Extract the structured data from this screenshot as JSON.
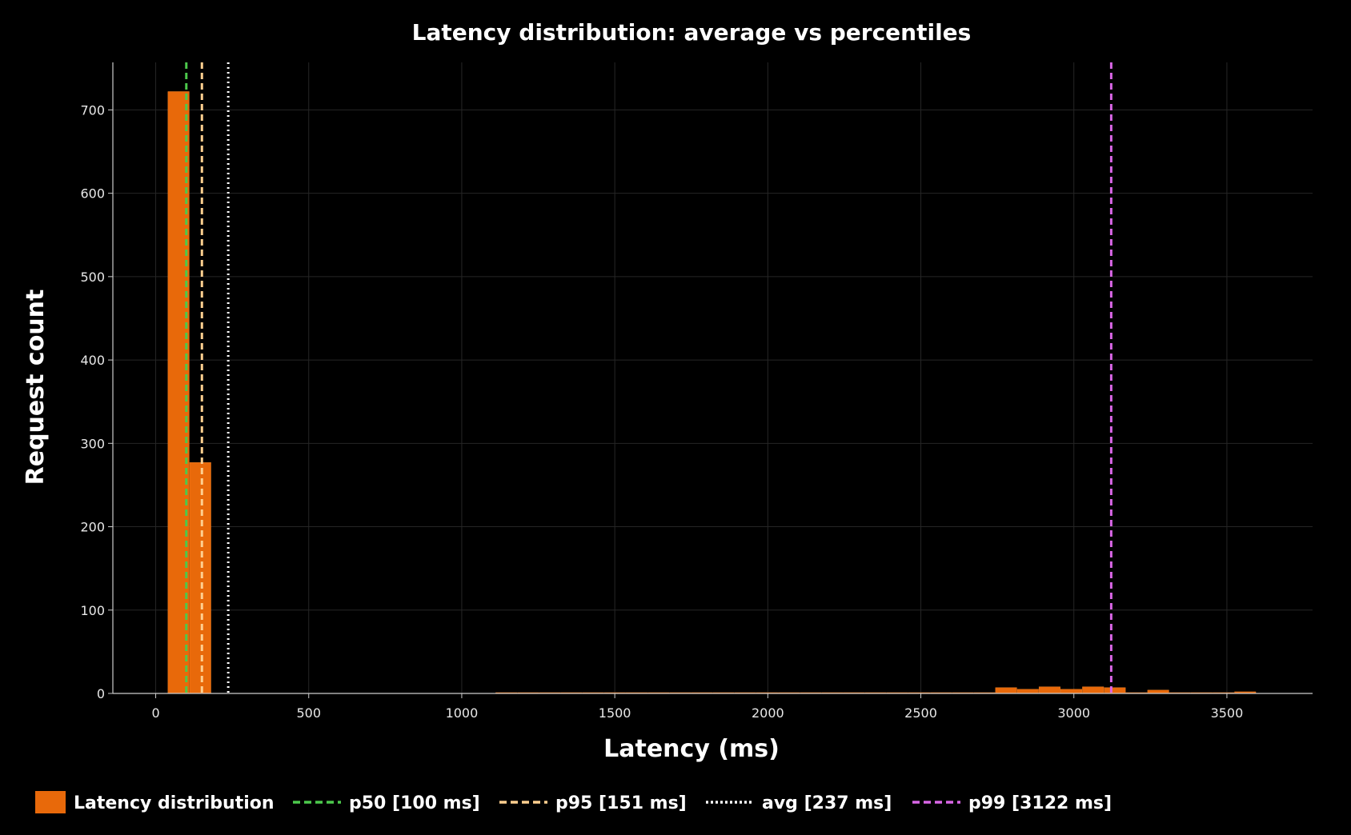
{
  "chart_data": {
    "type": "bar",
    "title": "Latency distribution: average vs percentiles",
    "xlabel": "Latency (ms)",
    "ylabel": "Request count",
    "xlim": [
      -140,
      3780
    ],
    "ylim": [
      0,
      757
    ],
    "x_ticks": [
      0,
      500,
      1000,
      1500,
      2000,
      2500,
      3000,
      3500
    ],
    "y_ticks": [
      0,
      100,
      200,
      300,
      400,
      500,
      600,
      700
    ],
    "grid": true,
    "legend_position": "bottom",
    "colors": {
      "background": "#000000",
      "bars": "#e8690a",
      "grid": "#262626",
      "axes": "#cccccc"
    },
    "series": [
      {
        "name": "Latency distribution",
        "bin_width": 71,
        "bins": [
          {
            "x0": 40,
            "count": 722
          },
          {
            "x0": 111,
            "count": 277
          },
          {
            "x0": 1111,
            "count": 1
          },
          {
            "x0": 1182,
            "count": 1
          },
          {
            "x0": 1253,
            "count": 1
          },
          {
            "x0": 1324,
            "count": 1
          },
          {
            "x0": 1395,
            "count": 1
          },
          {
            "x0": 1466,
            "count": 1
          },
          {
            "x0": 1537,
            "count": 1
          },
          {
            "x0": 1608,
            "count": 1
          },
          {
            "x0": 1679,
            "count": 1
          },
          {
            "x0": 1750,
            "count": 1
          },
          {
            "x0": 1821,
            "count": 1
          },
          {
            "x0": 1892,
            "count": 1
          },
          {
            "x0": 1963,
            "count": 1
          },
          {
            "x0": 2034,
            "count": 1
          },
          {
            "x0": 2105,
            "count": 1
          },
          {
            "x0": 2176,
            "count": 1
          },
          {
            "x0": 2247,
            "count": 1
          },
          {
            "x0": 2318,
            "count": 1
          },
          {
            "x0": 2389,
            "count": 1
          },
          {
            "x0": 2460,
            "count": 1
          },
          {
            "x0": 2531,
            "count": 1
          },
          {
            "x0": 2602,
            "count": 1
          },
          {
            "x0": 2673,
            "count": 1
          },
          {
            "x0": 2744,
            "count": 7
          },
          {
            "x0": 2815,
            "count": 5
          },
          {
            "x0": 2886,
            "count": 8
          },
          {
            "x0": 2957,
            "count": 5
          },
          {
            "x0": 3028,
            "count": 8
          },
          {
            "x0": 3099,
            "count": 7
          },
          {
            "x0": 3170,
            "count": 1
          },
          {
            "x0": 3241,
            "count": 4
          },
          {
            "x0": 3312,
            "count": 1
          },
          {
            "x0": 3383,
            "count": 1
          },
          {
            "x0": 3454,
            "count": 1
          },
          {
            "x0": 3525,
            "count": 2
          }
        ]
      }
    ],
    "reference_lines": [
      {
        "name": "p50 [100 ms]",
        "x": 100,
        "color": "#4cc94c",
        "style": "dashed"
      },
      {
        "name": "p95 [151 ms]",
        "x": 151,
        "color": "#ffcf8f",
        "style": "dashed"
      },
      {
        "name": "avg [237 ms]",
        "x": 237,
        "color": "#ffffff",
        "style": "dotted"
      },
      {
        "name": "p99 [3122 ms]",
        "x": 3122,
        "color": "#d966e6",
        "style": "dashed"
      }
    ]
  }
}
